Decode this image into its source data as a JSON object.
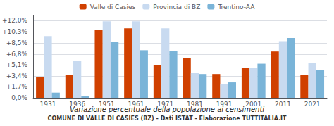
{
  "chart_data": {
    "type": "bar",
    "title": "Variazione percentuale della popolazione ai censimenti",
    "subtitle": "COMUNE DI VALLE DI CASIES (BZ) - Dati ISTAT - Elaborazione TUTTITALIA.IT",
    "categories": [
      "1931",
      "1936",
      "1951",
      "1961",
      "1971",
      "1981",
      "1991",
      "2001",
      "2011",
      "2021"
    ],
    "series": [
      {
        "name": "Valle di Casies",
        "color": "#d04000",
        "values": [
          3.2,
          3.5,
          10.5,
          10.8,
          5.1,
          6.2,
          3.7,
          4.6,
          7.2,
          3.5
        ]
      },
      {
        "name": "Provincia di BZ",
        "color": "#c8daf0",
        "values": [
          9.6,
          5.7,
          11.9,
          11.9,
          10.8,
          3.9,
          2.1,
          4.7,
          8.8,
          5.4
        ]
      },
      {
        "name": "Trentino-AA",
        "color": "#7ab4d8",
        "values": [
          0.8,
          0.3,
          8.7,
          7.4,
          7.3,
          3.7,
          2.4,
          5.3,
          9.3,
          4.3
        ]
      }
    ],
    "ylim": [
      0,
      12.8
    ],
    "yticks": [
      {
        "value": 0,
        "label": "0,0%"
      },
      {
        "value": 1.7,
        "label": "+1,7%"
      },
      {
        "value": 3.4,
        "label": "+3,4%"
      },
      {
        "value": 5.1,
        "label": "+5,1%"
      },
      {
        "value": 6.8,
        "label": "+6,8%"
      },
      {
        "value": 8.5,
        "label": "+8,5%"
      },
      {
        "value": 10.3,
        "label": "+10,3%"
      },
      {
        "value": 12.0,
        "label": "+12,0%"
      }
    ],
    "grid": true,
    "legend": "top"
  }
}
